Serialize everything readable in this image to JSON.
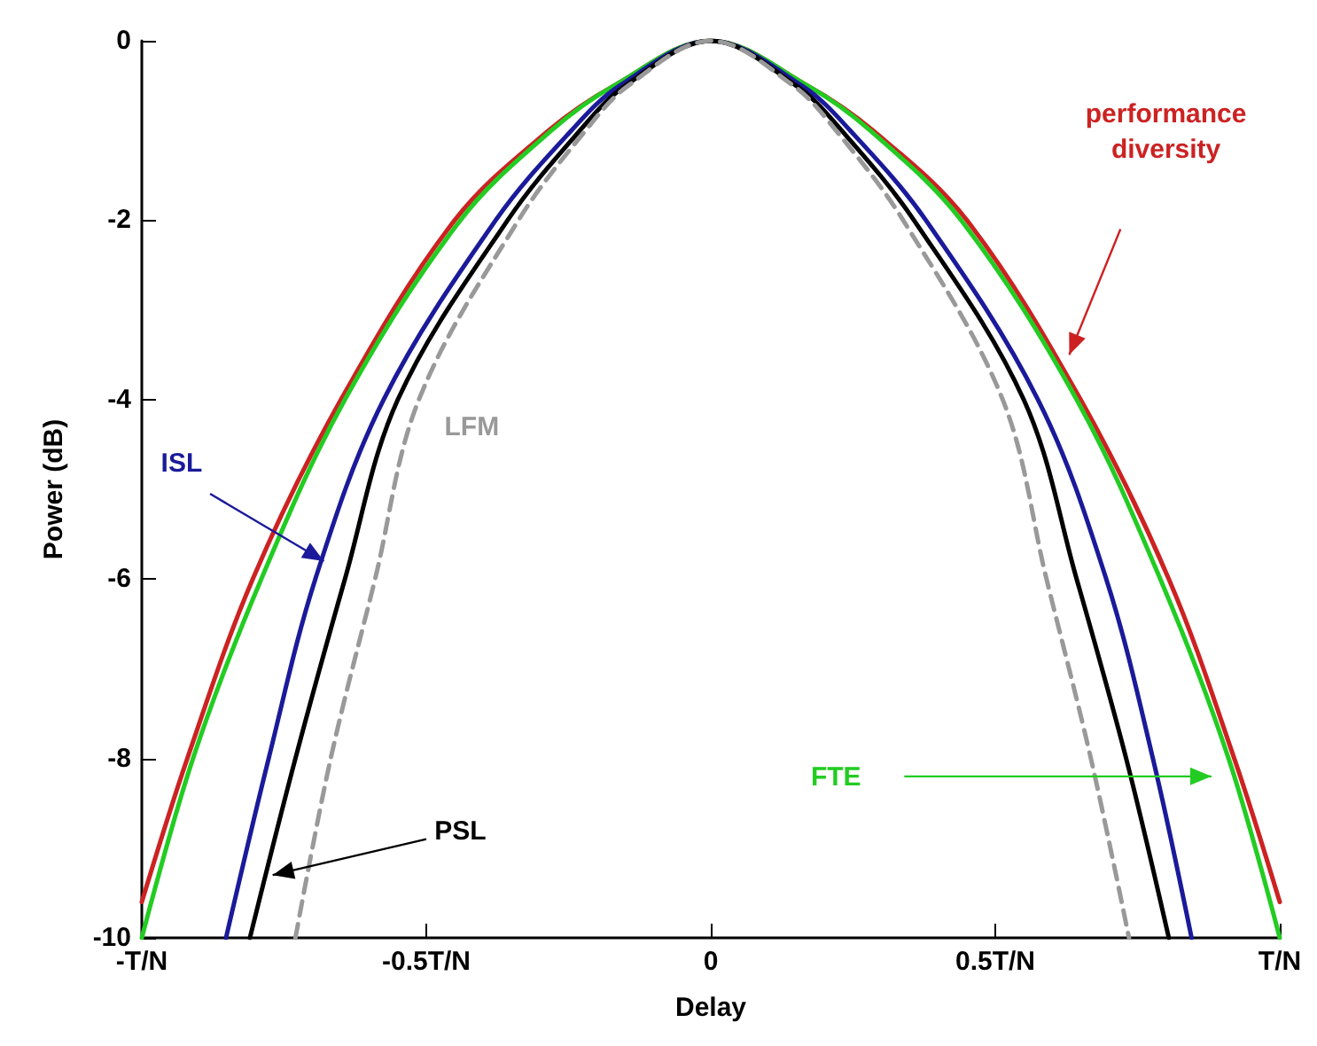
{
  "chart_data": {
    "type": "line",
    "xlabel": "Delay",
    "ylabel": "Power (dB)",
    "xlim": [
      -1,
      1
    ],
    "ylim": [
      -10,
      0
    ],
    "xticks": [
      {
        "value": -1,
        "label": "-T/N"
      },
      {
        "value": -0.5,
        "label": "-0.5T/N"
      },
      0,
      {
        "value": 0.5,
        "label": "0.5T/N"
      },
      {
        "value": 1,
        "label": "T/N"
      }
    ],
    "yticks": [
      -10,
      -8,
      -6,
      -4,
      -2,
      0
    ],
    "grid": false,
    "legend": false,
    "marker": "none",
    "series": [
      {
        "name": "performance diversity",
        "color": "#cc2222",
        "line_style": "solid",
        "x": [
          -1,
          -0.92,
          -0.805,
          -0.65,
          -0.45,
          -0.285,
          -0.17,
          0,
          0.17,
          0.285,
          0.45,
          0.65,
          0.805,
          0.92,
          1
        ],
        "values": [
          -9.6,
          -8,
          -6,
          -4,
          -2,
          -1,
          -0.5,
          0,
          -0.5,
          -1,
          -2,
          -4,
          -6,
          -8,
          -9.6
        ]
      },
      {
        "name": "FTE",
        "color": "#22cc22",
        "line_style": "solid",
        "x": [
          -1,
          -0.91,
          -0.79,
          -0.643,
          -0.44,
          -0.28,
          -0.17,
          0,
          0.17,
          0.28,
          0.44,
          0.643,
          0.79,
          0.91,
          1
        ],
        "values": [
          -10,
          -8,
          -6,
          -4,
          -2,
          -1,
          -0.5,
          0,
          -0.5,
          -1,
          -2,
          -4,
          -6,
          -8,
          -10
        ]
      },
      {
        "name": "ISL",
        "color": "#1a1a9a",
        "line_style": "solid",
        "x": [
          -0.852,
          -0.777,
          -0.695,
          -0.575,
          -0.378,
          -0.245,
          -0.16,
          0,
          0.16,
          0.245,
          0.378,
          0.575,
          0.695,
          0.777,
          0.845
        ],
        "values": [
          -10,
          -8,
          -6,
          -4,
          -2,
          -1,
          -0.5,
          0,
          -0.5,
          -1,
          -2,
          -4,
          -6,
          -8,
          -10
        ]
      },
      {
        "name": "PSL",
        "color": "#000000",
        "line_style": "solid",
        "x": [
          -0.81,
          -0.73,
          -0.643,
          -0.55,
          -0.357,
          -0.23,
          -0.15,
          0,
          0.15,
          0.23,
          0.357,
          0.55,
          0.643,
          0.73,
          0.805
        ],
        "values": [
          -10,
          -8,
          -6,
          -4,
          -2,
          -1,
          -0.5,
          0,
          -0.5,
          -1,
          -2,
          -4,
          -6,
          -8,
          -10
        ]
      },
      {
        "name": "LFM",
        "color": "#999999",
        "line_style": "dashed",
        "x": [
          -0.73,
          -0.668,
          -0.59,
          -0.513,
          -0.338,
          -0.22,
          -0.145,
          0,
          0.145,
          0.22,
          0.338,
          0.513,
          0.59,
          0.668,
          0.735
        ],
        "values": [
          -10,
          -8,
          -6,
          -4,
          -2,
          -1,
          -0.5,
          0,
          -0.5,
          -1,
          -2,
          -4,
          -6,
          -8,
          -10
        ]
      }
    ]
  }
}
